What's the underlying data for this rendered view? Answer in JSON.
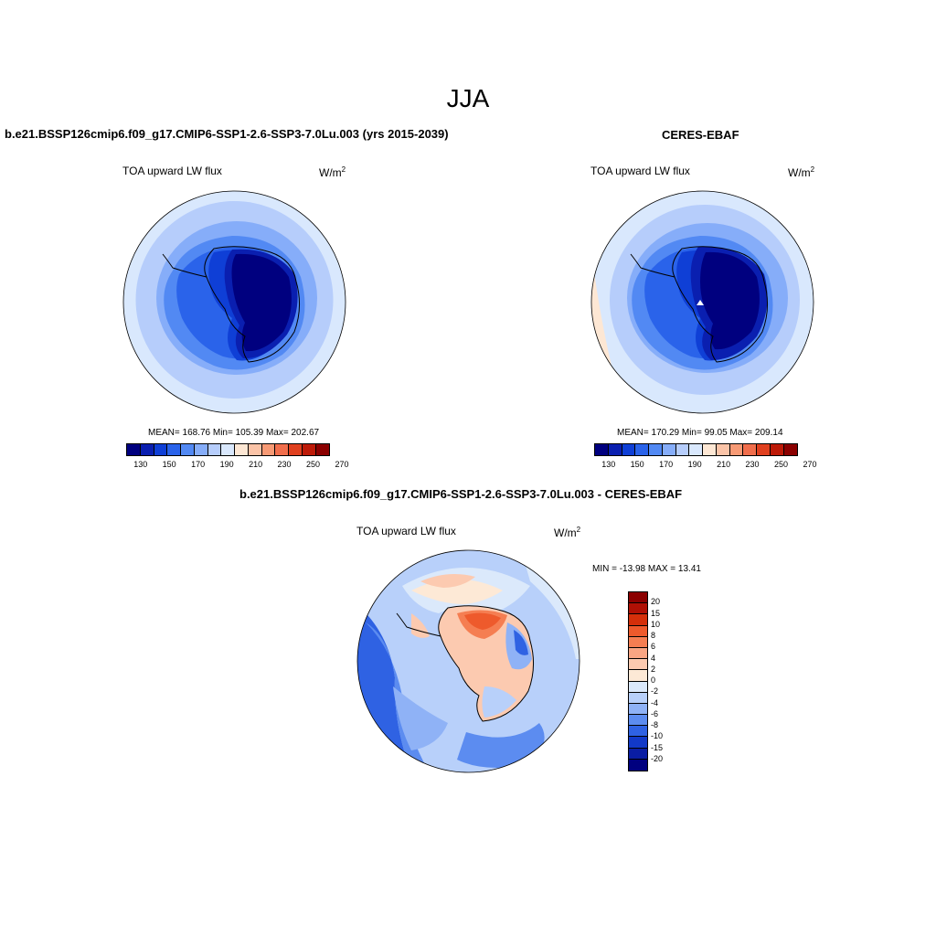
{
  "figure": {
    "title": "JJA",
    "diff_title": "b.e21.BSSP126cmip6.f09_g17.CMIP6-SSP1-2.6-SSP3-7.0Lu.003 - CERES-EBAF"
  },
  "panels": {
    "model": {
      "title": "b.e21.BSSP126cmip6.f09_g17.CMIP6-SSP1-2.6-SSP3-7.0Lu.003 (yrs 2015-2039)",
      "variable": "TOA upward LW flux",
      "units": "W/m",
      "units_exp": "2",
      "stats": "MEAN= 168.76  Min= 105.39  Max= 202.67"
    },
    "obs": {
      "title": "CERES-EBAF",
      "variable": "TOA upward LW flux",
      "units": "W/m",
      "units_exp": "2",
      "stats": "MEAN= 170.29  Min=  99.05  Max= 209.14"
    },
    "diff": {
      "variable": "TOA upward LW flux",
      "units": "W/m",
      "units_exp": "2",
      "stats": "MIN = -13.98 MAX =  13.41"
    }
  },
  "colorbar_abs": {
    "colors": [
      "#00007f",
      "#0a1fb0",
      "#0f3fd6",
      "#2a63ea",
      "#5289f3",
      "#86adf9",
      "#b6cdfb",
      "#d9e8fd",
      "#fde7d4",
      "#fbc4a8",
      "#f79a75",
      "#f16e4c",
      "#e0401f",
      "#bd1a08",
      "#8b0000"
    ],
    "tick_labels": [
      "130",
      "150",
      "170",
      "190",
      "210",
      "230",
      "250",
      "270"
    ]
  },
  "colorbar_diff": {
    "colors": [
      "#8b0000",
      "#b01005",
      "#d42f0a",
      "#ee5a2c",
      "#f57e52",
      "#f9a583",
      "#fccab0",
      "#fde9d6",
      "#dbe9fb",
      "#b8d0fa",
      "#8fb2f6",
      "#5c8cf0",
      "#2f62e3",
      "#1239c8",
      "#0a1da3",
      "#00007f"
    ],
    "tick_labels": [
      "20",
      "15",
      "10",
      "8",
      "6",
      "4",
      "2",
      "0",
      "-2",
      "-4",
      "-6",
      "-8",
      "-10",
      "-15",
      "-20"
    ]
  }
}
